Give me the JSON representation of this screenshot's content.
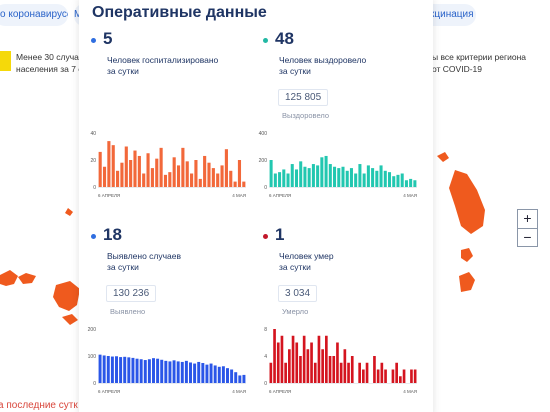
{
  "background": {
    "pill_left": "о коронавирусе",
    "pill_left_2": "М",
    "pill_right": "кцинация",
    "pill_chevron": "▾",
    "left_note_line1": "Менее 30 случаев",
    "left_note_line2": "населения за 7 су",
    "right_note_line1": "ы все критерии региона",
    "right_note_line2": "от COVID-19",
    "bottom_link": "а последние сутк",
    "zoom_in": "+",
    "zoom_out": "−",
    "map_color": "#ef5a1e"
  },
  "panel": {
    "title": "Оперативные данные",
    "cards": [
      {
        "value": "5",
        "label_line1": "Человек госпитализировано",
        "label_line2": "за сутки",
        "total": "",
        "total_label": "",
        "dot_color": "#2f6ee0",
        "bar_color": "#f2683a"
      },
      {
        "value": "48",
        "label_line1": "Человек выздоровело",
        "label_line2": "за сутки",
        "total": "125 805",
        "total_label": "Выздоровело",
        "dot_color": "#22b8a4",
        "bar_color": "#22c7b0"
      },
      {
        "value": "18",
        "label_line1": "Выявлено случаев",
        "label_line2": "за сутки",
        "total": "130 236",
        "total_label": "Выявлено",
        "dot_color": "#2f6ee0",
        "bar_color": "#2a56e8"
      },
      {
        "value": "1",
        "label_line1": "Человек умер",
        "label_line2": "за сутки",
        "total": "3 034",
        "total_label": "Умерло",
        "dot_color": "#c2182b",
        "bar_color": "#d4141f"
      }
    ]
  },
  "chart_data": [
    {
      "type": "bar",
      "series_name": "Госпитализировано",
      "x_start": "6 АПРЕЛЯ",
      "x_end": "4 МАЯ",
      "ylim": [
        0,
        40
      ],
      "yticks": [
        0,
        20,
        40
      ],
      "values": [
        26,
        15,
        34,
        31,
        12,
        18,
        30,
        20,
        27,
        23,
        10,
        25,
        14,
        21,
        29,
        9,
        11,
        22,
        16,
        29,
        19,
        10,
        20,
        6,
        23,
        18,
        14,
        10,
        16,
        28,
        12,
        4,
        20,
        4
      ]
    },
    {
      "type": "bar",
      "series_name": "Выздоровело",
      "x_start": "6 АПРЕЛЯ",
      "x_end": "4 МАЯ",
      "ylim": [
        0,
        400
      ],
      "yticks": [
        0,
        200,
        400
      ],
      "values": [
        200,
        100,
        110,
        130,
        100,
        170,
        130,
        190,
        150,
        140,
        170,
        160,
        220,
        230,
        170,
        150,
        140,
        150,
        120,
        140,
        100,
        170,
        100,
        160,
        140,
        120,
        160,
        120,
        110,
        80,
        90,
        100,
        50,
        60,
        50
      ]
    },
    {
      "type": "bar",
      "series_name": "Выявлено",
      "x_start": "6 АПРЕЛЯ",
      "x_end": "4 МАЯ",
      "ylim": [
        0,
        200
      ],
      "yticks": [
        0,
        100,
        200
      ],
      "values": [
        105,
        102,
        100,
        98,
        99,
        96,
        97,
        95,
        93,
        90,
        88,
        85,
        88,
        92,
        90,
        86,
        82,
        80,
        84,
        80,
        78,
        82,
        76,
        72,
        78,
        74,
        68,
        72,
        65,
        60,
        62,
        55,
        50,
        40,
        28,
        30
      ]
    },
    {
      "type": "bar",
      "series_name": "Умерло",
      "x_start": "6 АПРЕЛЯ",
      "x_end": "4 МАЯ",
      "ylim": [
        0,
        8
      ],
      "yticks": [
        0,
        4,
        8
      ],
      "values": [
        3,
        8,
        6,
        7,
        3,
        5,
        7,
        6,
        4,
        7,
        5,
        6,
        3,
        7,
        5,
        7,
        4,
        4,
        6,
        3,
        5,
        3,
        4,
        0,
        3,
        2,
        3,
        0,
        4,
        2,
        3,
        2,
        0,
        2,
        3,
        1,
        2,
        0,
        2,
        2
      ]
    }
  ]
}
